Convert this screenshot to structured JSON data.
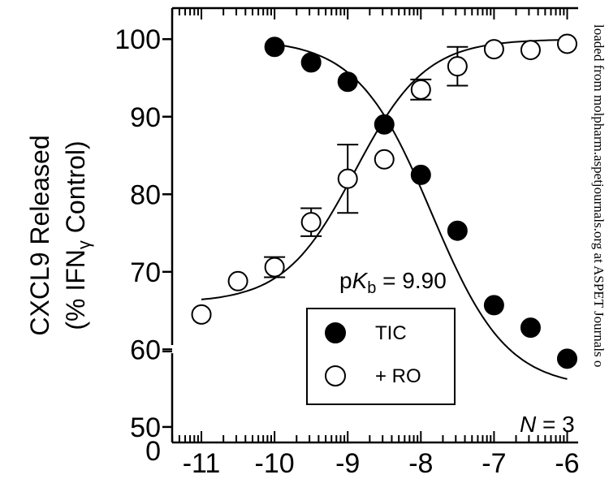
{
  "chart_data": {
    "type": "scatter",
    "ylabel_line1": "CXCL9 Released",
    "ylabel_line2_prefix": "(% IFN",
    "ylabel_line2_sub": "γ",
    "ylabel_line2_suffix": " Control)",
    "xlim": [
      -11.4,
      -5.85
    ],
    "ylim": [
      48,
      104
    ],
    "x_ticks": [
      -11,
      -10,
      -9,
      -8,
      -7,
      -6
    ],
    "x_tick_labels": [
      "-11",
      "-10",
      "-9",
      "-8",
      "-7",
      "-6"
    ],
    "y_ticks": [
      50,
      60,
      70,
      80,
      90,
      100
    ],
    "y_tick_labels": [
      "50",
      "60",
      "70",
      "80",
      "90",
      "100"
    ],
    "y_broken_label": "0",
    "annotation": {
      "p": "p",
      "K": "K",
      "sub": "b",
      "value": " = 9.90"
    },
    "n_label": {
      "N": "N",
      "value": " = 3"
    },
    "series": [
      {
        "name": "TIC",
        "marker": "filled-circle",
        "color": "#000000",
        "points": [
          {
            "x": -10,
            "y": 99
          },
          {
            "x": -9.5,
            "y": 97
          },
          {
            "x": -9,
            "y": 94.5
          },
          {
            "x": -8.5,
            "y": 89
          },
          {
            "x": -8,
            "y": 82.5
          },
          {
            "x": -7.5,
            "y": 75.3
          },
          {
            "x": -7,
            "y": 65.7
          },
          {
            "x": -6.5,
            "y": 62.8
          },
          {
            "x": -6,
            "y": 58.8
          }
        ],
        "fit": {
          "top": 100,
          "bottom": 55,
          "logEC50": -7.85,
          "hill": 0.85,
          "x_range": [
            -10,
            -6
          ]
        }
      },
      {
        "name": "+ RO",
        "marker": "open-circle",
        "color": "#000000",
        "points": [
          {
            "x": -11,
            "y": 64.5,
            "err": 0
          },
          {
            "x": -10.5,
            "y": 68.8,
            "err": 0
          },
          {
            "x": -10,
            "y": 70.6,
            "err": 1.3
          },
          {
            "x": -9.5,
            "y": 76.4,
            "err": 1.8
          },
          {
            "x": -9,
            "y": 82,
            "err": 4.4
          },
          {
            "x": -8.5,
            "y": 84.5,
            "err": 0
          },
          {
            "x": -8,
            "y": 93.5,
            "err": 1.3
          },
          {
            "x": -7.5,
            "y": 96.5,
            "err": 2.5
          },
          {
            "x": -7,
            "y": 98.7,
            "err": 0
          },
          {
            "x": -6.5,
            "y": 98.6,
            "err": 0
          },
          {
            "x": -6,
            "y": 99.4,
            "err": 0
          }
        ],
        "fit": {
          "top": 100,
          "bottom": 66,
          "logEC50": -8.9,
          "hill": 0.9,
          "x_range": [
            -11,
            -6
          ]
        }
      }
    ],
    "legend": {
      "placement": "bottom-center",
      "entries": [
        "TIC",
        "+ RO"
      ]
    }
  },
  "watermark": {
    "text": "loaded from molpharm.aspetjournals.org at ASPET Journals o"
  }
}
